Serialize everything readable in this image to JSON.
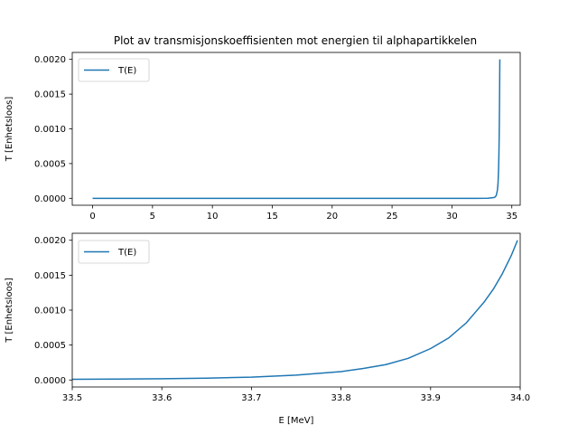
{
  "chart_data": [
    {
      "type": "line",
      "title": "Plot av transmisjonskoeffisienten mot energien til alphapartikkelen",
      "xlabel": "",
      "ylabel": "T [Enhetsloos]",
      "xlim": [
        -1.7,
        35.7
      ],
      "ylim": [
        -0.0001,
        0.0021
      ],
      "xticks": [
        0,
        5,
        10,
        15,
        20,
        25,
        30,
        35
      ],
      "xtick_labels": [
        "0",
        "5",
        "10",
        "15",
        "20",
        "25",
        "30",
        "35"
      ],
      "yticks": [
        0,
        0.0005,
        0.001,
        0.0015,
        0.002
      ],
      "ytick_labels": [
        "0.0000",
        "0.0005",
        "0.0010",
        "0.0015",
        "0.0020"
      ],
      "grid": false,
      "legend": "upper left",
      "series": [
        {
          "name": "T(E)",
          "color": "#1f77b4",
          "x": [
            0,
            5,
            10,
            15,
            20,
            25,
            30,
            32,
            33,
            33.5,
            33.6,
            33.7,
            33.8,
            33.85,
            33.9,
            33.92,
            33.94,
            33.96,
            33.98,
            34.0
          ],
          "y": [
            0,
            0,
            0,
            0,
            0,
            0,
            0,
            0,
            1e-06,
            1e-05,
            1.8e-05,
            4e-05,
            0.00012,
            0.00022,
            0.00045,
            0.0006,
            0.00082,
            0.00112,
            0.00152,
            0.002
          ]
        }
      ]
    },
    {
      "type": "line",
      "title": "",
      "xlabel": "E [MeV]",
      "ylabel": "T [Enhetsloos]",
      "xlim": [
        33.5,
        34.0
      ],
      "ylim": [
        -0.0001,
        0.0021
      ],
      "xticks": [
        33.5,
        33.6,
        33.7,
        33.8,
        33.9,
        34.0
      ],
      "xtick_labels": [
        "33.5",
        "33.6",
        "33.7",
        "33.8",
        "33.9",
        "34.0"
      ],
      "yticks": [
        0,
        0.0005,
        0.001,
        0.0015,
        0.002
      ],
      "ytick_labels": [
        "0.0000",
        "0.0005",
        "0.0010",
        "0.0015",
        "0.0020"
      ],
      "grid": false,
      "legend": "upper left",
      "series": [
        {
          "name": "T(E)",
          "color": "#1f77b4",
          "x": [
            33.5,
            33.55,
            33.6,
            33.65,
            33.7,
            33.75,
            33.8,
            33.825,
            33.85,
            33.875,
            33.9,
            33.92,
            33.94,
            33.95,
            33.96,
            33.97,
            33.98,
            33.99,
            33.997
          ],
          "y": [
            1e-05,
            1.3e-05,
            1.8e-05,
            2.7e-05,
            4e-05,
            7e-05,
            0.00012,
            0.000165,
            0.00022,
            0.00031,
            0.00045,
            0.0006,
            0.00082,
            0.00097,
            0.00112,
            0.0013,
            0.00152,
            0.00178,
            0.002
          ]
        }
      ]
    }
  ]
}
